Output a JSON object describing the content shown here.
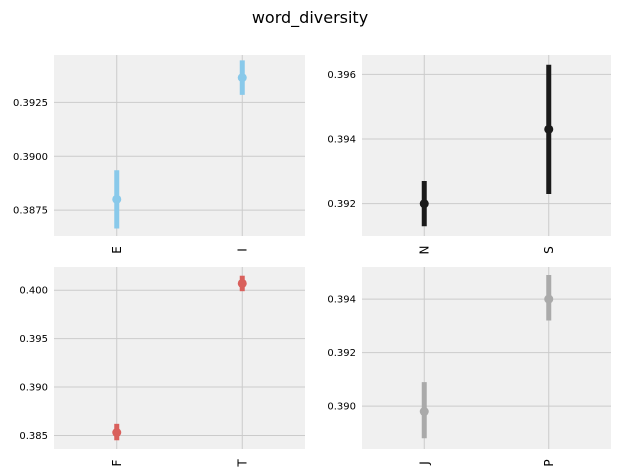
{
  "suptitle": "word_diversity",
  "chart_data": [
    {
      "type": "scatter",
      "title": "",
      "xlabel": "",
      "ylabel": "",
      "categories": [
        "E",
        "I"
      ],
      "series": [
        {
          "values": [
            0.388,
            0.39365
          ],
          "ci_low": [
            0.38665,
            0.39285
          ],
          "ci_high": [
            0.38935,
            0.39445
          ]
        }
      ],
      "color": "#89c9ea",
      "ylim": [
        0.3863,
        0.3947
      ],
      "yticks": [
        0.3875,
        0.39,
        0.3925
      ],
      "ytick_labels": [
        "0.3875",
        "0.3900",
        "0.3925"
      ],
      "grid": true
    },
    {
      "type": "scatter",
      "title": "",
      "xlabel": "",
      "ylabel": "",
      "categories": [
        "N",
        "S"
      ],
      "series": [
        {
          "values": [
            0.392,
            0.3943
          ],
          "ci_low": [
            0.3913,
            0.3923
          ],
          "ci_high": [
            0.3927,
            0.3963
          ]
        }
      ],
      "color": "#1a1a1a",
      "ylim": [
        0.391,
        0.3966
      ],
      "yticks": [
        0.392,
        0.394,
        0.396
      ],
      "ytick_labels": [
        "0.392",
        "0.394",
        "0.396"
      ],
      "grid": true
    },
    {
      "type": "scatter",
      "title": "",
      "xlabel": "",
      "ylabel": "",
      "categories": [
        "F",
        "T"
      ],
      "series": [
        {
          "values": [
            0.3853,
            0.4007
          ],
          "ci_low": [
            0.3845,
            0.3999
          ],
          "ci_high": [
            0.3862,
            0.4015
          ]
        }
      ],
      "color": "#d9605c",
      "ylim": [
        0.3836,
        0.4024
      ],
      "yticks": [
        0.385,
        0.39,
        0.395,
        0.4
      ],
      "ytick_labels": [
        "0.385",
        "0.390",
        "0.395",
        "0.400"
      ],
      "grid": true
    },
    {
      "type": "scatter",
      "title": "",
      "xlabel": "",
      "ylabel": "",
      "categories": [
        "J",
        "P"
      ],
      "series": [
        {
          "values": [
            0.3898,
            0.394
          ],
          "ci_low": [
            0.3888,
            0.3932
          ],
          "ci_high": [
            0.3909,
            0.3949
          ]
        }
      ],
      "color": "#aaaaaa",
      "ylim": [
        0.3884,
        0.3952
      ],
      "yticks": [
        0.39,
        0.392,
        0.394
      ],
      "ytick_labels": [
        "0.390",
        "0.392",
        "0.394"
      ],
      "grid": true
    }
  ]
}
